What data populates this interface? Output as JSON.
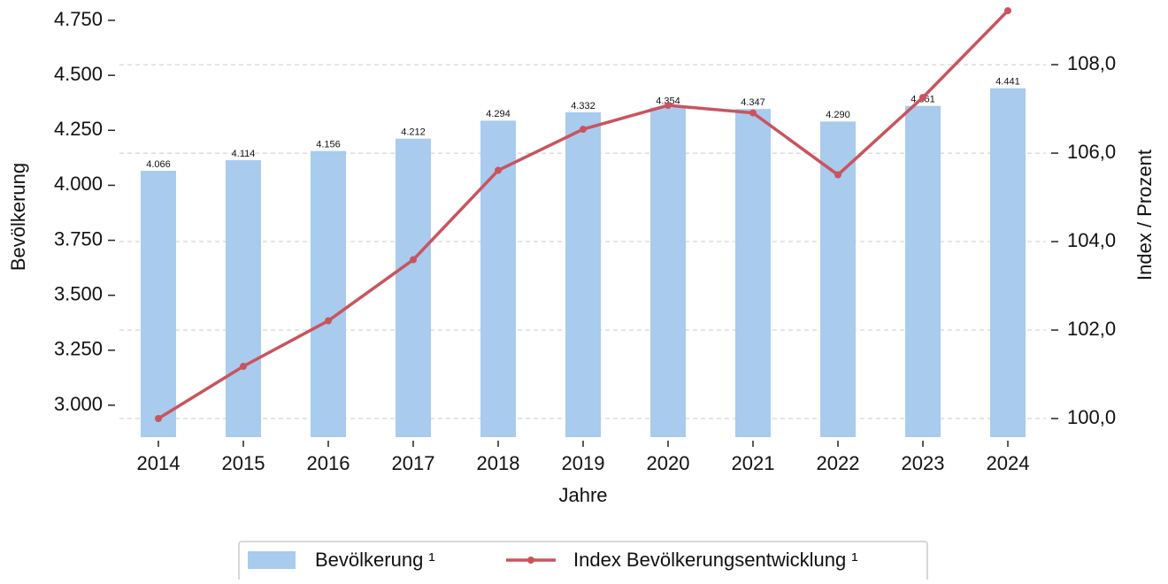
{
  "chart_data": {
    "type": "bar_line",
    "categories": [
      "2014",
      "2015",
      "2016",
      "2017",
      "2018",
      "2019",
      "2020",
      "2021",
      "2022",
      "2023",
      "2024"
    ],
    "xlabel": "Jahre",
    "ylabel": "Bevölkerung",
    "y2label": "Index / Prozent",
    "series": [
      {
        "name": "Bevölkerung ¹",
        "type": "bar",
        "color": "#a8cbee",
        "values": [
          4066,
          4114,
          4156,
          4212,
          4294,
          4332,
          4354,
          4347,
          4290,
          4361,
          4441
        ],
        "value_labels": [
          "4.066",
          "4.114",
          "4.156",
          "4.212",
          "4.294",
          "4.332",
          "4.354",
          "4.347",
          "4.290",
          "4.361",
          "4.441"
        ]
      },
      {
        "name": "Index Bevölkerungsentwicklung ¹",
        "type": "line",
        "axis": "y2",
        "color": "#c9545e",
        "values": [
          100.0,
          101.18,
          102.21,
          103.59,
          105.61,
          106.54,
          107.08,
          106.91,
          105.51,
          107.26,
          109.22
        ]
      }
    ],
    "ylim": [
      2855,
      4820
    ],
    "yticks": [
      {
        "value": 3000,
        "label": "3.000"
      },
      {
        "value": 3250,
        "label": "3.250"
      },
      {
        "value": 3500,
        "label": "3.500"
      },
      {
        "value": 3750,
        "label": "3.750"
      },
      {
        "value": 4000,
        "label": "4.000"
      },
      {
        "value": 4250,
        "label": "4.250"
      },
      {
        "value": 4500,
        "label": "4.500"
      },
      {
        "value": 4750,
        "label": "4.750"
      }
    ],
    "y2lim": [
      99.58,
      109.35
    ],
    "y2ticks": [
      {
        "value": 100,
        "label": "100,0"
      },
      {
        "value": 102,
        "label": "102,0"
      },
      {
        "value": 104,
        "label": "104,0"
      },
      {
        "value": 106,
        "label": "106,0"
      },
      {
        "value": 108,
        "label": "108,0"
      }
    ],
    "grid": true,
    "legend": "bottom"
  }
}
